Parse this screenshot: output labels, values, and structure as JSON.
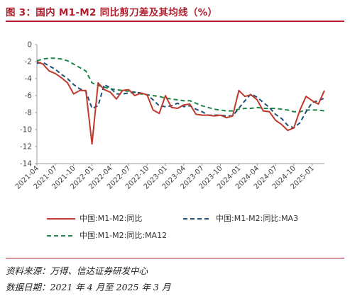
{
  "header": {
    "title": "图 3：国内 M1-M2 同比剪刀差及其均线（%）"
  },
  "legend": {
    "items": [
      {
        "label": "中国:M1-M2:同比",
        "color": "#c0392b",
        "dash": "solid"
      },
      {
        "label": "中国:M1-M2:同比:MA3",
        "color": "#1f4e79",
        "dash": "dash"
      },
      {
        "label": "中国:M1-M2:同比:MA12",
        "color": "#1e8449",
        "dash": "dash"
      }
    ]
  },
  "footer": {
    "source": "资料来源：万得、信达证券研发中心",
    "date_range": "数据日期：2021 年 4 月至 2025 年 3 月"
  },
  "chart_data": {
    "type": "line",
    "ylim": [
      -14,
      0
    ],
    "yticks": [
      "0",
      "-2",
      "-4",
      "-6",
      "-8",
      "-10",
      "-12",
      "-14"
    ],
    "xtick_labels": [
      "2021-04",
      "2021-07",
      "2021-10",
      "2022-01",
      "2022-04",
      "2022-07",
      "2022-10",
      "2023-01",
      "2023-04",
      "2023-07",
      "2023-10",
      "2024-01",
      "2024-04",
      "2024-07",
      "2024-10",
      "2025-01"
    ],
    "x": [
      "2021-04",
      "2021-05",
      "2021-06",
      "2021-07",
      "2021-08",
      "2021-09",
      "2021-10",
      "2021-11",
      "2021-12",
      "2022-01",
      "2022-02",
      "2022-03",
      "2022-04",
      "2022-05",
      "2022-06",
      "2022-07",
      "2022-08",
      "2022-09",
      "2022-10",
      "2022-11",
      "2022-12",
      "2023-01",
      "2023-02",
      "2023-03",
      "2023-04",
      "2023-05",
      "2023-06",
      "2023-07",
      "2023-08",
      "2023-09",
      "2023-10",
      "2023-11",
      "2023-12",
      "2024-01",
      "2024-02",
      "2024-03",
      "2024-04",
      "2024-05",
      "2024-06",
      "2024-07",
      "2024-08",
      "2024-09",
      "2024-10",
      "2024-11",
      "2024-12",
      "2025-01",
      "2025-02",
      "2025-03"
    ],
    "series": [
      {
        "name": "中国:M1-M2:同比",
        "values": [
          -2.0,
          -2.3,
          -3.1,
          -3.4,
          -3.9,
          -4.5,
          -5.8,
          -5.4,
          -5.4,
          -11.7,
          -4.5,
          -5.3,
          -5.6,
          -6.4,
          -5.4,
          -5.3,
          -6.0,
          -5.7,
          -5.9,
          -7.7,
          -8.1,
          -6.0,
          -7.4,
          -7.5,
          -7.1,
          -7.0,
          -8.2,
          -8.3,
          -8.3,
          -8.4,
          -8.3,
          -8.6,
          -8.4,
          -5.4,
          -6.1,
          -5.9,
          -6.5,
          -7.8,
          -7.9,
          -8.9,
          -9.4,
          -10.1,
          -9.8,
          -7.7,
          -6.1,
          -6.6,
          -7.0,
          -5.4
        ]
      },
      {
        "name": "中国:M1-M2:同比:MA3",
        "values": [
          -2.2,
          -2.1,
          -2.5,
          -2.9,
          -3.5,
          -4.0,
          -4.7,
          -5.2,
          -5.5,
          -7.5,
          -7.2,
          -4.7,
          -5.1,
          -5.8,
          -5.8,
          -5.7,
          -5.6,
          -5.7,
          -5.9,
          -6.5,
          -7.2,
          -7.3,
          -7.2,
          -6.9,
          -7.3,
          -7.2,
          -7.6,
          -7.9,
          -8.3,
          -8.3,
          -8.3,
          -8.4,
          -8.4,
          -7.5,
          -6.6,
          -5.8,
          -6.2,
          -6.8,
          -7.4,
          -8.2,
          -8.7,
          -9.5,
          -9.8,
          -9.2,
          -7.9,
          -6.8,
          -6.6,
          -6.3
        ]
      },
      {
        "name": "中国:M1-M2:同比:MA12",
        "values": [
          -1.9,
          -1.7,
          -1.6,
          -1.6,
          -1.7,
          -1.9,
          -2.3,
          -2.7,
          -3.1,
          -4.5,
          -4.8,
          -5.0,
          -5.2,
          -5.3,
          -5.4,
          -5.5,
          -5.6,
          -5.8,
          -5.9,
          -6.0,
          -6.1,
          -6.3,
          -6.4,
          -6.5,
          -6.6,
          -6.6,
          -6.9,
          -7.2,
          -7.4,
          -7.6,
          -7.7,
          -7.8,
          -7.8,
          -7.6,
          -7.5,
          -7.5,
          -7.4,
          -7.5,
          -7.5,
          -7.5,
          -7.6,
          -7.7,
          -7.9,
          -7.9,
          -7.7,
          -7.7,
          -7.7,
          -7.8
        ]
      }
    ]
  }
}
